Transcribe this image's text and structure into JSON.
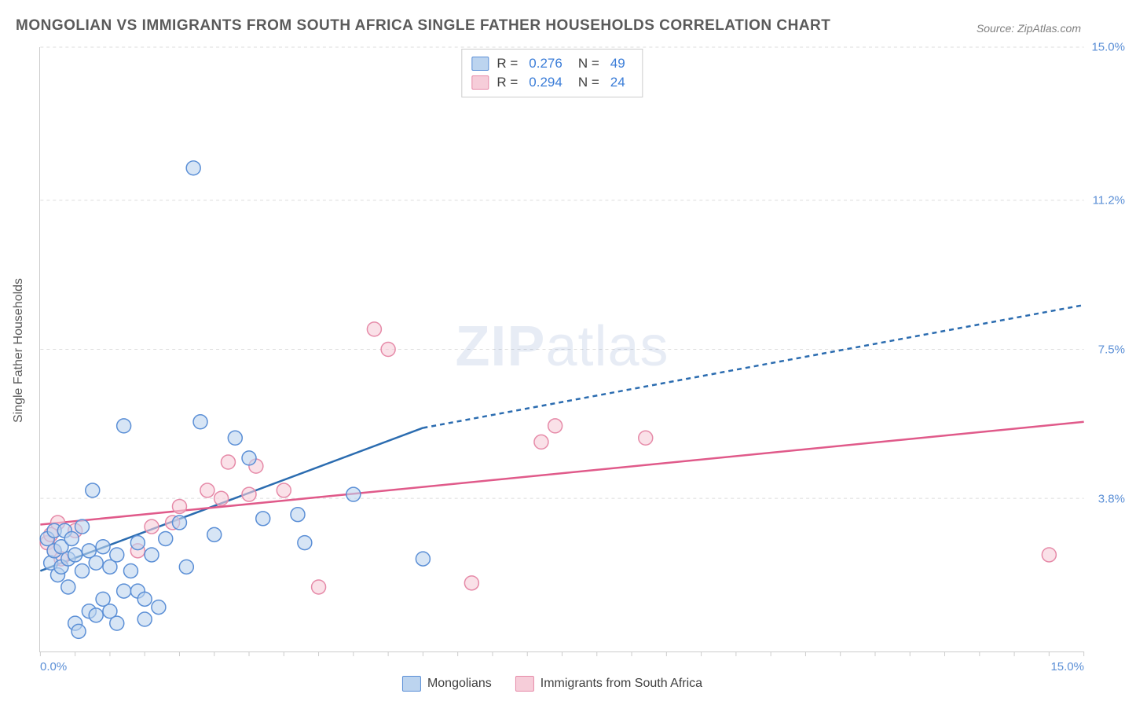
{
  "title": "MONGOLIAN VS IMMIGRANTS FROM SOUTH AFRICA SINGLE FATHER HOUSEHOLDS CORRELATION CHART",
  "source_label": "Source: ZipAtlas.com",
  "ylabel": "Single Father Households",
  "watermark": {
    "part1": "ZIP",
    "part2": "atlas"
  },
  "chart": {
    "type": "scatter",
    "background_color": "#ffffff",
    "grid_color": "#dddddd",
    "axis_color": "#cccccc",
    "tick_font_color": "#5b8fd6",
    "tick_fontsize": 15,
    "label_font_color": "#5a5a5a",
    "label_fontsize": 16,
    "title_font_color": "#5a5a5a",
    "title_fontsize": 19,
    "xlim": [
      0.0,
      15.0
    ],
    "ylim": [
      0.0,
      15.0
    ],
    "xticks_visible": [
      "0.0%",
      "15.0%"
    ],
    "yticks": [
      {
        "value": 3.8,
        "label": "3.8%"
      },
      {
        "value": 7.5,
        "label": "7.5%"
      },
      {
        "value": 11.2,
        "label": "11.2%"
      },
      {
        "value": 15.0,
        "label": "15.0%"
      }
    ],
    "x_minor_tick_step": 0.5,
    "marker_radius": 9,
    "marker_stroke_width": 1.5,
    "marker_fill_opacity": 0.25,
    "series": [
      {
        "name": "Mongolians",
        "color_stroke": "#5b8fd6",
        "color_fill": "#bcd4ef",
        "r_value": "0.276",
        "n_value": "49",
        "trend_line": {
          "solid": {
            "x1": 0.0,
            "y1": 2.0,
            "x2": 5.5,
            "y2": 5.55
          },
          "dashed": {
            "x1": 5.5,
            "y1": 5.55,
            "x2": 15.0,
            "y2": 8.6
          },
          "color": "#2b6cb0",
          "width": 2.5,
          "dash_pattern": "6,5"
        },
        "points": [
          [
            0.1,
            2.8
          ],
          [
            0.15,
            2.2
          ],
          [
            0.2,
            2.5
          ],
          [
            0.2,
            3.0
          ],
          [
            0.25,
            1.9
          ],
          [
            0.3,
            2.6
          ],
          [
            0.3,
            2.1
          ],
          [
            0.35,
            3.0
          ],
          [
            0.4,
            2.3
          ],
          [
            0.4,
            1.6
          ],
          [
            0.45,
            2.8
          ],
          [
            0.5,
            0.7
          ],
          [
            0.5,
            2.4
          ],
          [
            0.55,
            0.5
          ],
          [
            0.6,
            2.0
          ],
          [
            0.6,
            3.1
          ],
          [
            0.7,
            1.0
          ],
          [
            0.7,
            2.5
          ],
          [
            0.75,
            4.0
          ],
          [
            0.8,
            0.9
          ],
          [
            0.8,
            2.2
          ],
          [
            0.9,
            1.3
          ],
          [
            0.9,
            2.6
          ],
          [
            1.0,
            1.0
          ],
          [
            1.0,
            2.1
          ],
          [
            1.1,
            0.7
          ],
          [
            1.1,
            2.4
          ],
          [
            1.2,
            1.5
          ],
          [
            1.2,
            5.6
          ],
          [
            1.3,
            2.0
          ],
          [
            1.4,
            1.5
          ],
          [
            1.4,
            2.7
          ],
          [
            1.5,
            1.3
          ],
          [
            1.5,
            0.8
          ],
          [
            1.6,
            2.4
          ],
          [
            1.7,
            1.1
          ],
          [
            1.8,
            2.8
          ],
          [
            2.0,
            3.2
          ],
          [
            2.1,
            2.1
          ],
          [
            2.2,
            12.0
          ],
          [
            2.3,
            5.7
          ],
          [
            2.5,
            2.9
          ],
          [
            2.8,
            5.3
          ],
          [
            3.0,
            4.8
          ],
          [
            3.2,
            3.3
          ],
          [
            3.7,
            3.4
          ],
          [
            3.8,
            2.7
          ],
          [
            4.5,
            3.9
          ],
          [
            5.5,
            2.3
          ]
        ]
      },
      {
        "name": "Immigrants from South Africa",
        "color_stroke": "#e68aa8",
        "color_fill": "#f6cdd9",
        "r_value": "0.294",
        "n_value": "24",
        "trend_line": {
          "solid": {
            "x1": 0.0,
            "y1": 3.15,
            "x2": 15.0,
            "y2": 5.7
          },
          "dashed": null,
          "color": "#e05a8a",
          "width": 2.5,
          "dash_pattern": null
        },
        "points": [
          [
            0.1,
            2.7
          ],
          [
            0.15,
            2.9
          ],
          [
            0.2,
            2.5
          ],
          [
            0.25,
            3.2
          ],
          [
            0.3,
            2.3
          ],
          [
            0.5,
            3.0
          ],
          [
            1.4,
            2.5
          ],
          [
            1.6,
            3.1
          ],
          [
            1.9,
            3.2
          ],
          [
            2.0,
            3.6
          ],
          [
            2.4,
            4.0
          ],
          [
            2.6,
            3.8
          ],
          [
            2.7,
            4.7
          ],
          [
            3.0,
            3.9
          ],
          [
            3.1,
            4.6
          ],
          [
            3.5,
            4.0
          ],
          [
            4.0,
            1.6
          ],
          [
            4.8,
            8.0
          ],
          [
            5.0,
            7.5
          ],
          [
            6.2,
            1.7
          ],
          [
            7.2,
            5.2
          ],
          [
            7.4,
            5.6
          ],
          [
            8.7,
            5.3
          ],
          [
            14.5,
            2.4
          ]
        ]
      }
    ]
  },
  "stat_legend": {
    "r_label": "R =",
    "n_label": "N ="
  },
  "bottom_legend": {
    "items": [
      "Mongolians",
      "Immigrants from South Africa"
    ]
  }
}
